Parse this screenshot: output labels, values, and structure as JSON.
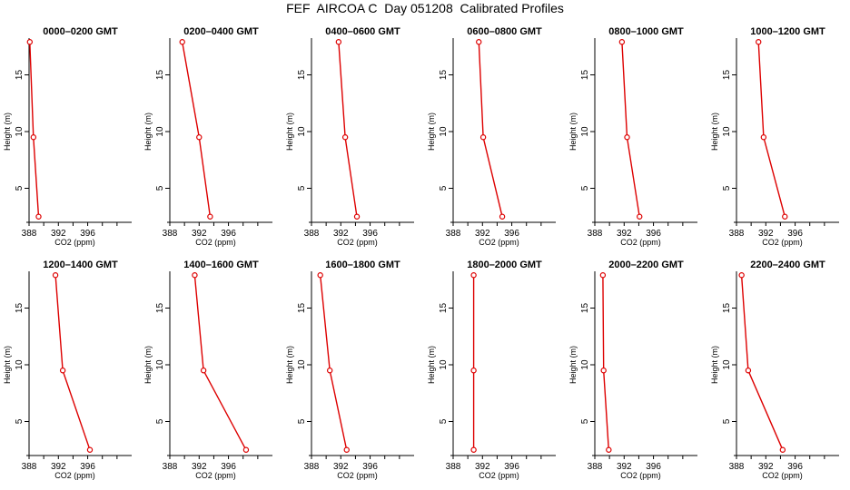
{
  "title": "FEF  AIRCOA C  Day 051208  Calibrated Profiles",
  "colors": {
    "series": "#dd0000",
    "axis": "#000000",
    "background": "#ffffff"
  },
  "chart_data": [
    {
      "type": "line",
      "title": "0000–0200 GMT",
      "xlabel": "CO2 (ppm)",
      "ylabel": "Height (m)",
      "xlim": [
        388,
        402
      ],
      "ylim": [
        2,
        18
      ],
      "xticks": [
        388,
        392,
        396
      ],
      "yticks": [
        5,
        10,
        15
      ],
      "points": [
        {
          "co2": 388.1,
          "height": 17.9
        },
        {
          "co2": 388.6,
          "height": 9.5
        },
        {
          "co2": 389.3,
          "height": 2.5
        }
      ]
    },
    {
      "type": "line",
      "title": "0200–0400 GMT",
      "xlabel": "CO2 (ppm)",
      "ylabel": "Height (m)",
      "xlim": [
        388,
        402
      ],
      "ylim": [
        2,
        18
      ],
      "xticks": [
        388,
        392,
        396
      ],
      "yticks": [
        5,
        10,
        15
      ],
      "points": [
        {
          "co2": 389.7,
          "height": 17.9
        },
        {
          "co2": 392.0,
          "height": 9.5
        },
        {
          "co2": 393.5,
          "height": 2.5
        }
      ]
    },
    {
      "type": "line",
      "title": "0400–0600 GMT",
      "xlabel": "CO2 (ppm)",
      "ylabel": "Height (m)",
      "xlim": [
        388,
        402
      ],
      "ylim": [
        2,
        18
      ],
      "xticks": [
        388,
        392,
        396
      ],
      "yticks": [
        5,
        10,
        15
      ],
      "points": [
        {
          "co2": 391.7,
          "height": 17.9
        },
        {
          "co2": 392.6,
          "height": 9.5
        },
        {
          "co2": 394.2,
          "height": 2.5
        }
      ]
    },
    {
      "type": "line",
      "title": "0600–0800 GMT",
      "xlabel": "CO2 (ppm)",
      "ylabel": "Height (m)",
      "xlim": [
        388,
        402
      ],
      "ylim": [
        2,
        18
      ],
      "xticks": [
        388,
        392,
        396
      ],
      "yticks": [
        5,
        10,
        15
      ],
      "points": [
        {
          "co2": 391.5,
          "height": 17.9
        },
        {
          "co2": 392.1,
          "height": 9.5
        },
        {
          "co2": 394.7,
          "height": 2.5
        }
      ]
    },
    {
      "type": "line",
      "title": "0800–1000 GMT",
      "xlabel": "CO2 (ppm)",
      "ylabel": "Height (m)",
      "xlim": [
        388,
        402
      ],
      "ylim": [
        2,
        18
      ],
      "xticks": [
        388,
        392,
        396
      ],
      "yticks": [
        5,
        10,
        15
      ],
      "points": [
        {
          "co2": 391.7,
          "height": 17.9
        },
        {
          "co2": 392.4,
          "height": 9.5
        },
        {
          "co2": 394.1,
          "height": 2.5
        }
      ]
    },
    {
      "type": "line",
      "title": "1000–1200 GMT",
      "xlabel": "CO2 (ppm)",
      "ylabel": "Height (m)",
      "xlim": [
        388,
        402
      ],
      "ylim": [
        2,
        18
      ],
      "xticks": [
        388,
        392,
        396
      ],
      "yticks": [
        5,
        10,
        15
      ],
      "points": [
        {
          "co2": 391.0,
          "height": 17.9
        },
        {
          "co2": 391.7,
          "height": 9.5
        },
        {
          "co2": 394.6,
          "height": 2.5
        }
      ]
    },
    {
      "type": "line",
      "title": "1200–1400 GMT",
      "xlabel": "CO2 (ppm)",
      "ylabel": "Height (m)",
      "xlim": [
        388,
        402
      ],
      "ylim": [
        2,
        18
      ],
      "xticks": [
        388,
        392,
        396
      ],
      "yticks": [
        5,
        10,
        15
      ],
      "points": [
        {
          "co2": 391.6,
          "height": 17.9
        },
        {
          "co2": 392.6,
          "height": 9.5
        },
        {
          "co2": 396.3,
          "height": 2.5
        }
      ]
    },
    {
      "type": "line",
      "title": "1400–1600 GMT",
      "xlabel": "CO2 (ppm)",
      "ylabel": "Height (m)",
      "xlim": [
        388,
        402
      ],
      "ylim": [
        2,
        18
      ],
      "xticks": [
        388,
        392,
        396
      ],
      "yticks": [
        5,
        10,
        15
      ],
      "points": [
        {
          "co2": 391.4,
          "height": 17.9
        },
        {
          "co2": 392.6,
          "height": 9.5
        },
        {
          "co2": 398.4,
          "height": 2.5
        }
      ]
    },
    {
      "type": "line",
      "title": "1600–1800 GMT",
      "xlabel": "CO2 (ppm)",
      "ylabel": "Height (m)",
      "xlim": [
        388,
        402
      ],
      "ylim": [
        2,
        18
      ],
      "xticks": [
        388,
        392,
        396
      ],
      "yticks": [
        5,
        10,
        15
      ],
      "points": [
        {
          "co2": 389.2,
          "height": 17.9
        },
        {
          "co2": 390.5,
          "height": 9.5
        },
        {
          "co2": 392.8,
          "height": 2.5
        }
      ]
    },
    {
      "type": "line",
      "title": "1800–2000 GMT",
      "xlabel": "CO2 (ppm)",
      "ylabel": "Height (m)",
      "xlim": [
        388,
        402
      ],
      "ylim": [
        2,
        18
      ],
      "xticks": [
        388,
        392,
        396
      ],
      "yticks": [
        5,
        10,
        15
      ],
      "points": [
        {
          "co2": 390.8,
          "height": 17.9
        },
        {
          "co2": 390.8,
          "height": 9.5
        },
        {
          "co2": 390.8,
          "height": 2.5
        }
      ]
    },
    {
      "type": "line",
      "title": "2000–2200 GMT",
      "xlabel": "CO2 (ppm)",
      "ylabel": "Height (m)",
      "xlim": [
        388,
        402
      ],
      "ylim": [
        2,
        18
      ],
      "xticks": [
        388,
        392,
        396
      ],
      "yticks": [
        5,
        10,
        15
      ],
      "points": [
        {
          "co2": 389.1,
          "height": 17.9
        },
        {
          "co2": 389.2,
          "height": 9.5
        },
        {
          "co2": 389.9,
          "height": 2.5
        }
      ]
    },
    {
      "type": "line",
      "title": "2200–2400 GMT",
      "xlabel": "CO2 (ppm)",
      "ylabel": "Height (m)",
      "xlim": [
        388,
        402
      ],
      "ylim": [
        2,
        18
      ],
      "xticks": [
        388,
        392,
        396
      ],
      "yticks": [
        5,
        10,
        15
      ],
      "points": [
        {
          "co2": 388.7,
          "height": 17.9
        },
        {
          "co2": 389.6,
          "height": 9.5
        },
        {
          "co2": 394.3,
          "height": 2.5
        }
      ]
    }
  ]
}
